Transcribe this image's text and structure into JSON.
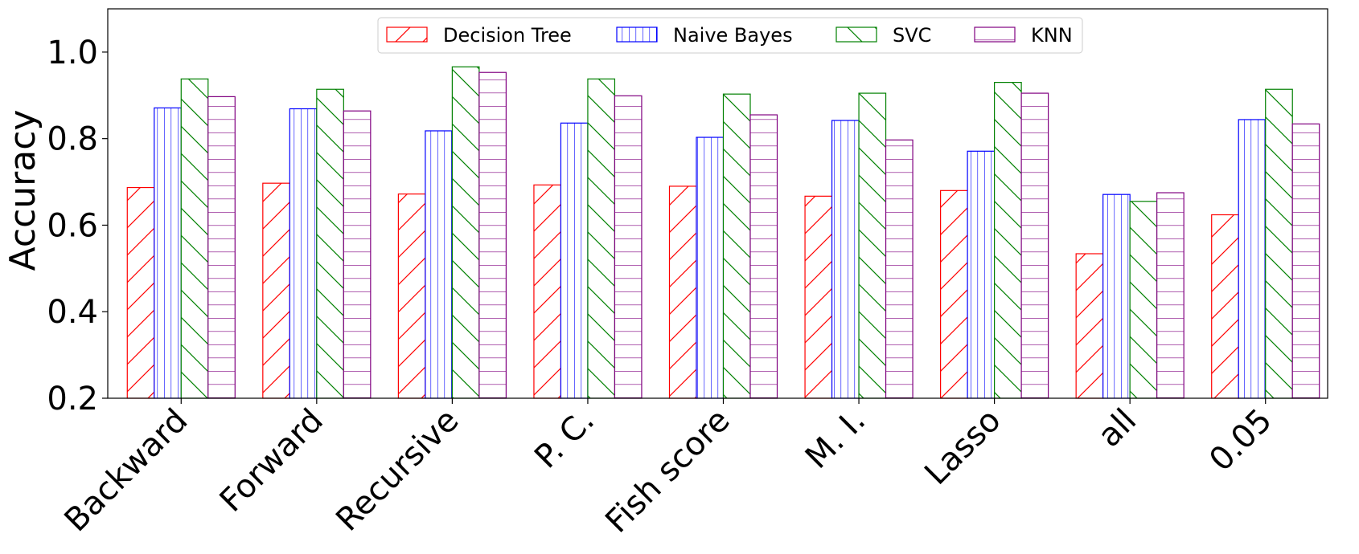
{
  "chart_data": {
    "type": "bar",
    "ylabel": "Accuracy",
    "ylim": [
      0.2,
      1.1
    ],
    "yticks": [
      0.2,
      0.4,
      0.6,
      0.8,
      1.0
    ],
    "ytick_labels": [
      "0.2",
      "0.4",
      "0.6",
      "0.8",
      "1.0"
    ],
    "legend_position": "top-center",
    "grid": false,
    "categories": [
      "Backward",
      "Forward",
      "Recursive",
      "P. C.",
      "Fish score",
      "M. I.",
      "Lasso",
      "all",
      "0.05"
    ],
    "series": [
      {
        "name": "Decision Tree",
        "color": "#ff0000",
        "hatch": "/",
        "values": [
          0.687,
          0.697,
          0.672,
          0.693,
          0.69,
          0.667,
          0.68,
          0.534,
          0.624
        ]
      },
      {
        "name": "Naive Bayes",
        "color": "#0000ff",
        "hatch": "|",
        "values": [
          0.871,
          0.869,
          0.818,
          0.836,
          0.803,
          0.842,
          0.771,
          0.671,
          0.844
        ]
      },
      {
        "name": "SVC",
        "color": "#008000",
        "hatch": "\\",
        "values": [
          0.938,
          0.914,
          0.966,
          0.938,
          0.903,
          0.905,
          0.93,
          0.655,
          0.914
        ]
      },
      {
        "name": "KNN",
        "color": "#800080",
        "hatch": "-",
        "values": [
          0.897,
          0.864,
          0.953,
          0.899,
          0.855,
          0.797,
          0.905,
          0.675,
          0.834
        ]
      }
    ]
  }
}
